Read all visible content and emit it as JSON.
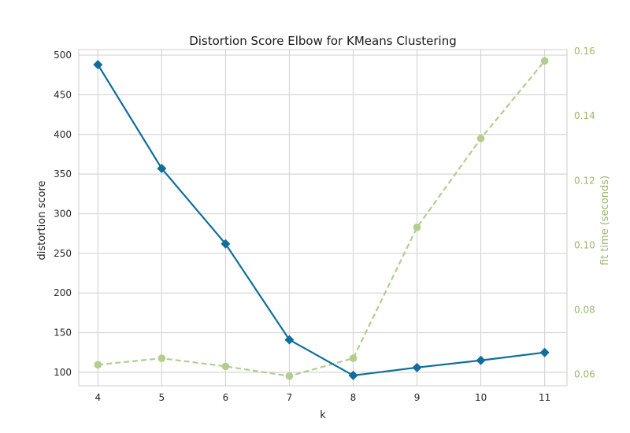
{
  "chart_data": {
    "type": "line",
    "title": "Distortion Score Elbow for KMeans Clustering",
    "xlabel": "k",
    "ylabel": "distortion score",
    "y2label": "fit time (seconds)",
    "x": [
      4,
      5,
      6,
      7,
      8,
      9,
      10,
      11
    ],
    "xlim": [
      3.7,
      11.35
    ],
    "ylim": [
      83,
      507
    ],
    "y2lim": [
      0.0565,
      0.1605
    ],
    "yticks": [
      100,
      150,
      200,
      250,
      300,
      350,
      400,
      450,
      500
    ],
    "y2ticks": [
      0.06,
      0.08,
      0.1,
      0.12,
      0.14,
      0.16
    ],
    "y2tick_labels": [
      "0.06",
      "0.08",
      "0.10",
      "0.12",
      "0.14",
      "0.16"
    ],
    "grid": true,
    "series": [
      {
        "values": [
          488,
          357,
          262,
          141,
          96,
          106,
          115,
          125
        ],
        "axis": "left",
        "color": "#0f6e9b",
        "marker": "diamond",
        "style": "solid"
      },
      {
        "values": [
          0.063,
          0.065,
          0.0625,
          0.0595,
          0.065,
          0.1055,
          0.133,
          0.157
        ],
        "axis": "right",
        "color": "#b3cd8e",
        "marker": "circle",
        "style": "dashed"
      }
    ]
  }
}
